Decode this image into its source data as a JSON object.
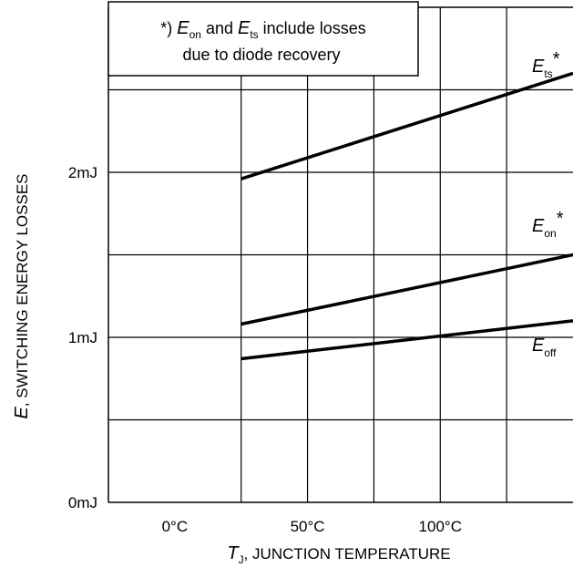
{
  "chart_data": {
    "type": "line",
    "title": "",
    "xlabel": {
      "symbol": "T",
      "subscript": "J",
      "text": ", JUNCTION TEMPERATURE"
    },
    "ylabel": {
      "symbol": "E",
      "text": ", SWITCHING ENERGY LOSSES"
    },
    "x_unit": "°C",
    "y_unit": "mJ",
    "xlim": [
      -25,
      150
    ],
    "ylim": [
      0,
      3
    ],
    "x_ticks": [
      {
        "value": 0,
        "label": "0°C"
      },
      {
        "value": 50,
        "label": "50°C"
      },
      {
        "value": 100,
        "label": "100°C"
      }
    ],
    "y_ticks": [
      {
        "value": 0,
        "label": "0mJ"
      },
      {
        "value": 1,
        "label": "1mJ"
      },
      {
        "value": 2,
        "label": "2mJ"
      }
    ],
    "x_grid": [
      25,
      50,
      75,
      100,
      125
    ],
    "y_grid": [
      0.5,
      1,
      1.5,
      2,
      2.5
    ],
    "series": [
      {
        "name": "E_ts*",
        "label_main": "E",
        "label_sub": "ts",
        "label_sup": "*",
        "x": [
          25,
          150
        ],
        "y": [
          1.96,
          2.6
        ]
      },
      {
        "name": "E_on*",
        "label_main": "E",
        "label_sub": "on",
        "label_sup": "*",
        "x": [
          25,
          150
        ],
        "y": [
          1.08,
          1.5
        ]
      },
      {
        "name": "E_off",
        "label_main": "E",
        "label_sub": "off",
        "label_sup": "",
        "x": [
          25,
          150
        ],
        "y": [
          0.87,
          1.1
        ]
      }
    ],
    "annotation": {
      "line1_prefix": "*) ",
      "line1_e1": "E",
      "line1_s1": "on",
      "line1_mid": " and ",
      "line1_e2": "E",
      "line1_s2": "ts",
      "line1_suffix": " include losses",
      "line2": "due to diode recovery"
    },
    "grid": true,
    "legend": "none"
  }
}
